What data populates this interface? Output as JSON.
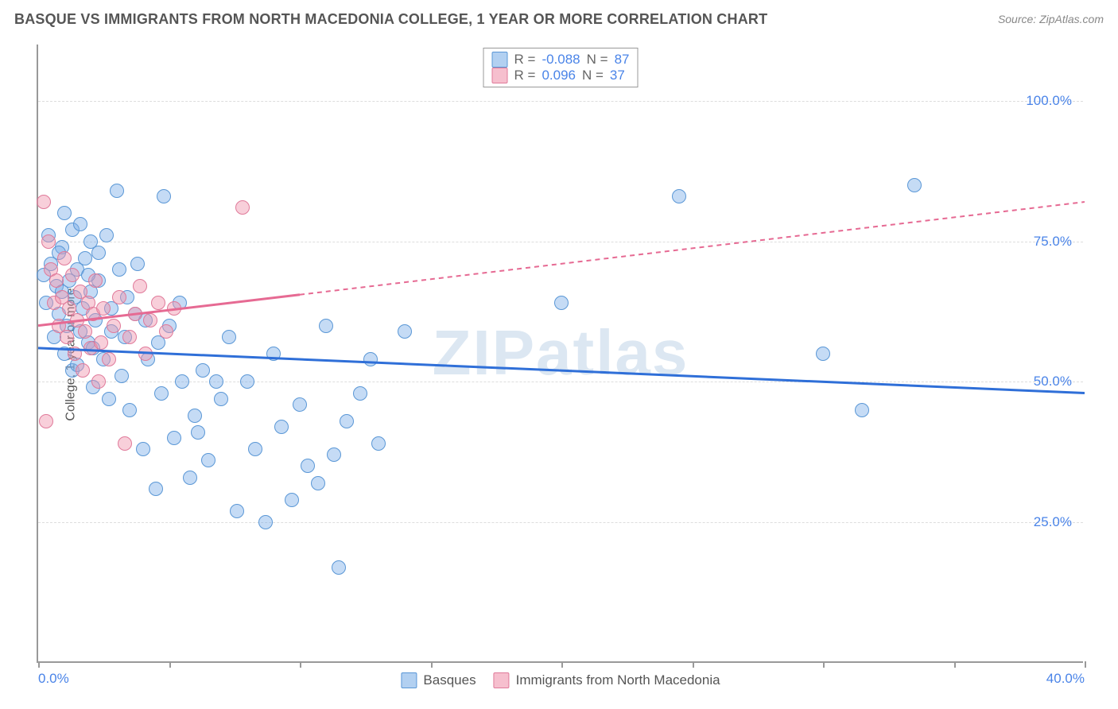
{
  "header": {
    "title": "BASQUE VS IMMIGRANTS FROM NORTH MACEDONIA COLLEGE, 1 YEAR OR MORE CORRELATION CHART",
    "source": "Source: ZipAtlas.com"
  },
  "chart": {
    "type": "scatter",
    "ylabel": "College, 1 year or more",
    "watermark": "ZIPatlas",
    "background_color": "#ffffff",
    "grid_color": "#dddddd",
    "axis_color": "#999999",
    "tick_label_color": "#4a84e8",
    "xlim": [
      0,
      40
    ],
    "ylim": [
      0,
      110
    ],
    "yticks": [
      {
        "v": 25,
        "label": "25.0%"
      },
      {
        "v": 50,
        "label": "50.0%"
      },
      {
        "v": 75,
        "label": "75.0%"
      },
      {
        "v": 100,
        "label": "100.0%"
      }
    ],
    "xticks_minor": [
      0,
      5,
      10,
      15,
      20,
      25,
      30,
      35,
      40
    ],
    "xtick_labels": [
      {
        "v": 0,
        "label": "0.0%",
        "align": "left"
      },
      {
        "v": 40,
        "label": "40.0%",
        "align": "right"
      }
    ],
    "series": [
      {
        "name": "Basques",
        "color_fill": "rgba(126,176,232,0.45)",
        "color_stroke": "#5a97d6",
        "marker_class": "m-blue",
        "swatch_class": "sw-blue",
        "r_label": "R =",
        "r_value": "-0.088",
        "n_label": "N =",
        "n_value": "87",
        "trend": {
          "x1": 0,
          "y1": 56,
          "x2": 40,
          "y2": 48,
          "stroke": "#2f6fd8",
          "dash": "none"
        },
        "points": [
          [
            0.3,
            64
          ],
          [
            0.5,
            71
          ],
          [
            0.6,
            58
          ],
          [
            0.7,
            67
          ],
          [
            0.8,
            62
          ],
          [
            0.9,
            74
          ],
          [
            1.0,
            55
          ],
          [
            1.1,
            60
          ],
          [
            1.2,
            68
          ],
          [
            1.3,
            52
          ],
          [
            1.4,
            65
          ],
          [
            1.5,
            70
          ],
          [
            1.6,
            59
          ],
          [
            1.7,
            63
          ],
          [
            1.8,
            72
          ],
          [
            1.9,
            57
          ],
          [
            2.0,
            66
          ],
          [
            2.1,
            49
          ],
          [
            2.2,
            61
          ],
          [
            2.3,
            68
          ],
          [
            2.5,
            54
          ],
          [
            2.7,
            47
          ],
          [
            2.8,
            63
          ],
          [
            3.0,
            84
          ],
          [
            3.1,
            70
          ],
          [
            3.2,
            51
          ],
          [
            3.3,
            58
          ],
          [
            3.5,
            45
          ],
          [
            3.7,
            62
          ],
          [
            3.8,
            71
          ],
          [
            4.0,
            38
          ],
          [
            4.2,
            54
          ],
          [
            4.5,
            31
          ],
          [
            4.7,
            48
          ],
          [
            5.0,
            60
          ],
          [
            5.2,
            40
          ],
          [
            5.5,
            50
          ],
          [
            5.8,
            33
          ],
          [
            6.0,
            44
          ],
          [
            6.3,
            52
          ],
          [
            6.5,
            36
          ],
          [
            4.8,
            83
          ],
          [
            7.0,
            47
          ],
          [
            7.3,
            58
          ],
          [
            7.6,
            27
          ],
          [
            8.0,
            50
          ],
          [
            8.3,
            38
          ],
          [
            8.7,
            25
          ],
          [
            9.0,
            55
          ],
          [
            9.3,
            42
          ],
          [
            9.7,
            29
          ],
          [
            10.0,
            46
          ],
          [
            10.3,
            35
          ],
          [
            10.7,
            32
          ],
          [
            11.0,
            60
          ],
          [
            11.3,
            37
          ],
          [
            11.5,
            17
          ],
          [
            11.8,
            43
          ],
          [
            12.3,
            48
          ],
          [
            12.7,
            54
          ],
          [
            13.0,
            39
          ],
          [
            14.0,
            59
          ],
          [
            20.0,
            64
          ],
          [
            24.5,
            83
          ],
          [
            30.0,
            55
          ],
          [
            31.5,
            45
          ],
          [
            33.5,
            85
          ],
          [
            1.0,
            80
          ],
          [
            1.3,
            77
          ],
          [
            2.0,
            75
          ],
          [
            1.6,
            78
          ],
          [
            0.4,
            76
          ],
          [
            0.8,
            73
          ],
          [
            2.3,
            73
          ],
          [
            2.6,
            76
          ],
          [
            1.9,
            69
          ],
          [
            0.2,
            69
          ],
          [
            0.9,
            66
          ],
          [
            1.5,
            53
          ],
          [
            2.1,
            56
          ],
          [
            2.8,
            59
          ],
          [
            3.4,
            65
          ],
          [
            4.1,
            61
          ],
          [
            4.6,
            57
          ],
          [
            5.4,
            64
          ],
          [
            6.1,
            41
          ],
          [
            6.8,
            50
          ]
        ]
      },
      {
        "name": "Immigrants from North Macedonia",
        "color_fill": "rgba(240,148,174,0.45)",
        "color_stroke": "#e07a9a",
        "marker_class": "m-pink",
        "swatch_class": "sw-pink",
        "r_label": "R =",
        "r_value": "0.096",
        "n_label": "N =",
        "n_value": "37",
        "trend": {
          "x1": 0,
          "y1": 60,
          "x2": 40,
          "y2": 82,
          "stroke": "#e66a93",
          "dash": "solid-then-dash",
          "solid_until_x": 10
        },
        "points": [
          [
            0.2,
            82
          ],
          [
            0.4,
            75
          ],
          [
            0.5,
            70
          ],
          [
            0.6,
            64
          ],
          [
            0.7,
            68
          ],
          [
            0.8,
            60
          ],
          [
            0.9,
            65
          ],
          [
            1.0,
            72
          ],
          [
            1.1,
            58
          ],
          [
            1.2,
            63
          ],
          [
            1.3,
            69
          ],
          [
            1.4,
            55
          ],
          [
            1.5,
            61
          ],
          [
            1.6,
            66
          ],
          [
            1.7,
            52
          ],
          [
            1.8,
            59
          ],
          [
            1.9,
            64
          ],
          [
            2.0,
            56
          ],
          [
            2.1,
            62
          ],
          [
            2.2,
            68
          ],
          [
            2.3,
            50
          ],
          [
            2.4,
            57
          ],
          [
            2.5,
            63
          ],
          [
            2.7,
            54
          ],
          [
            2.9,
            60
          ],
          [
            3.1,
            65
          ],
          [
            3.3,
            39
          ],
          [
            3.5,
            58
          ],
          [
            3.7,
            62
          ],
          [
            3.9,
            67
          ],
          [
            4.1,
            55
          ],
          [
            4.3,
            61
          ],
          [
            4.6,
            64
          ],
          [
            4.9,
            59
          ],
          [
            5.2,
            63
          ],
          [
            0.3,
            43
          ],
          [
            7.8,
            81
          ]
        ]
      }
    ]
  }
}
